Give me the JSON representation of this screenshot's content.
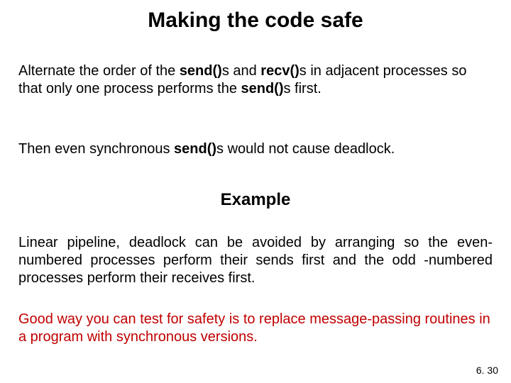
{
  "title": "Making the code safe",
  "para1_pre": "Alternate the order of the ",
  "para1_b1": "send()",
  "para1_mid1": "s and ",
  "para1_b2": "recv()",
  "para1_mid2": "s in adjacent processes so that only one process performs the ",
  "para1_b3": "send()",
  "para1_post": "s first.",
  "para2_pre": "Then even synchronous ",
  "para2_b1": "send()",
  "para2_post": "s would not cause deadlock.",
  "subheading": "Example",
  "para3_line1": "Linear pipeline, deadlock can be avoided by arranging so the",
  "para3_line2": "even-numbered processes perform their sends first and the odd",
  "para3_line3": "-numbered processes perform their receives first.",
  "para4": "Good way you can test for safety is to replace message-passing routines in a program with synchronous versions.",
  "footer": "6. 30",
  "colors": {
    "text": "#000000",
    "highlight": "#c00000",
    "background": "#ffffff"
  },
  "fonts": {
    "title_size_pt": 30,
    "body_size_pt": 20,
    "sub_size_pt": 24,
    "footer_size_pt": 14,
    "family": "Arial"
  }
}
